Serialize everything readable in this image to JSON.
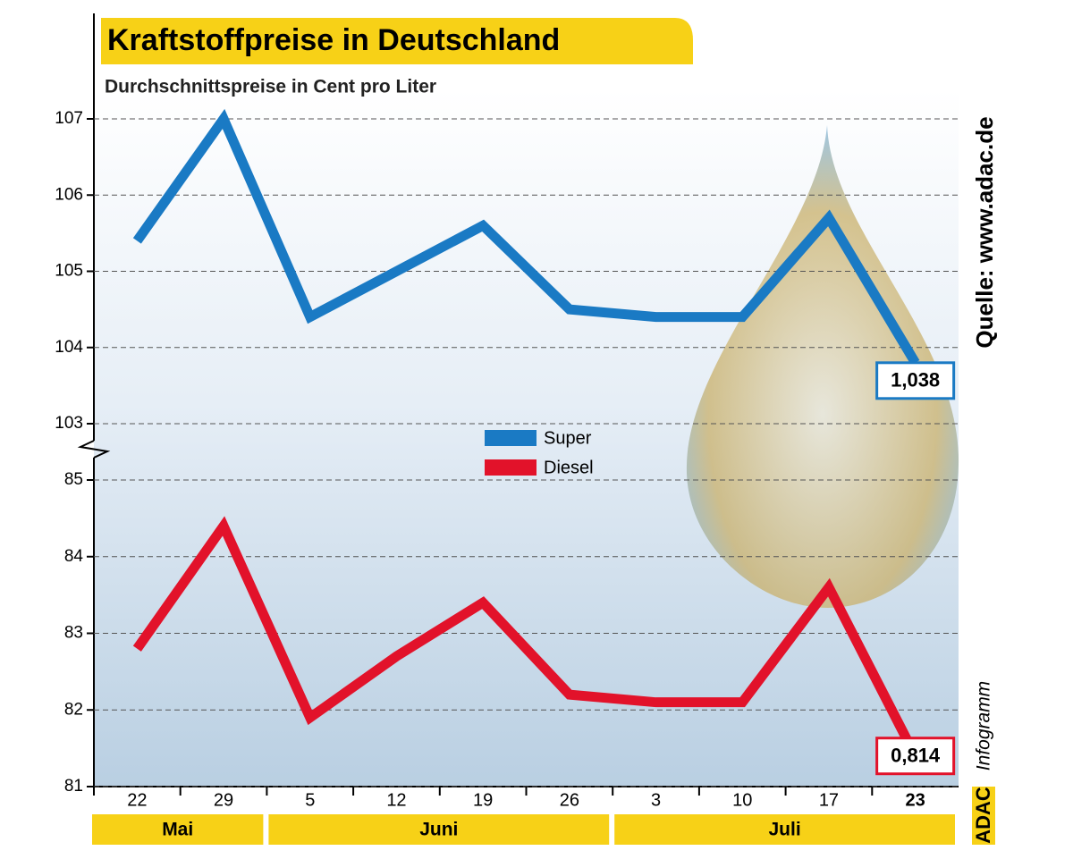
{
  "chart_data": {
    "type": "line",
    "title": "Kraftstoffpreise in Deutschland",
    "subtitle": "Durchschnittspreise in Cent pro Liter",
    "categories": [
      "22",
      "29",
      "5",
      "12",
      "19",
      "26",
      "3",
      "10",
      "17",
      "23"
    ],
    "months": [
      "Mai",
      "Juni",
      "Juli"
    ],
    "series": [
      {
        "name": "Super",
        "color": "#1a7ac4",
        "values": [
          105.4,
          107.0,
          104.4,
          105.0,
          105.6,
          104.5,
          104.4,
          104.4,
          105.7,
          103.8
        ],
        "value_labels": [
          null,
          null,
          null,
          null,
          null,
          null,
          null,
          null,
          null,
          "1,038"
        ]
      },
      {
        "name": "Diesel",
        "color": "#e2122a",
        "axis": "y2",
        "values": [
          82.8,
          84.4,
          81.9,
          82.7,
          83.4,
          82.2,
          82.1,
          82.1,
          83.6,
          81.4
        ],
        "value_labels": [
          null,
          null,
          null,
          null,
          null,
          null,
          null,
          null,
          null,
          "0,814"
        ]
      }
    ],
    "ylim": [
      103,
      107
    ],
    "yticks": [
      103,
      104,
      105,
      106,
      107
    ],
    "y2lim": [
      81,
      85
    ],
    "y2ticks": [
      81,
      82,
      83,
      84,
      85
    ],
    "grid": true,
    "source": "Quelle: www.adac.de",
    "brand": "ADAC",
    "brand_suffix": "Infogramm"
  }
}
